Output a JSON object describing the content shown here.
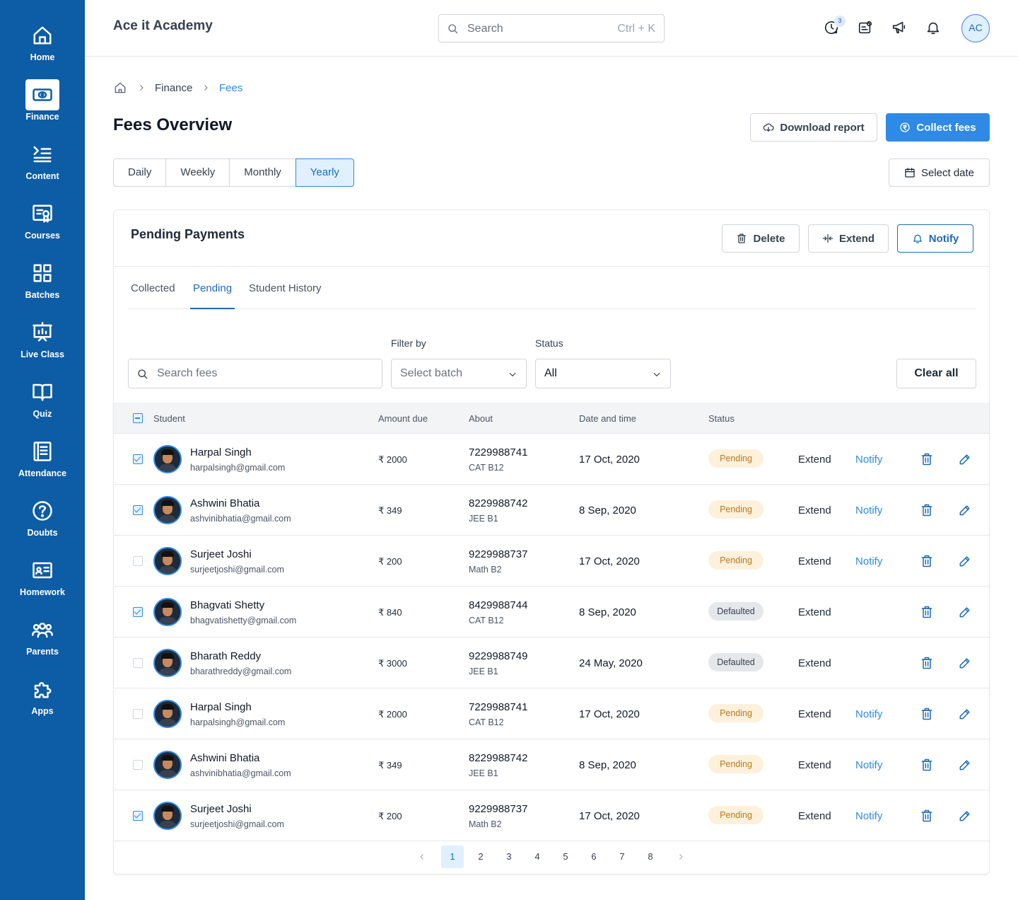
{
  "app": {
    "title": "Ace it Academy"
  },
  "header": {
    "search_placeholder": "Search",
    "search_shortcut": "Ctrl + K",
    "updates_badge": "3",
    "avatar_initials": "AC"
  },
  "sidebar": {
    "items": [
      {
        "label": "Home",
        "icon": "home-icon"
      },
      {
        "label": "Finance",
        "icon": "banknote-icon",
        "active": true
      },
      {
        "label": "Content",
        "icon": "list-icon"
      },
      {
        "label": "Courses",
        "icon": "certificate-icon"
      },
      {
        "label": "Batches",
        "icon": "grid-icon"
      },
      {
        "label": "Live Class",
        "icon": "presentation-icon"
      },
      {
        "label": "Quiz",
        "icon": "book-open-icon"
      },
      {
        "label": "Attendance",
        "icon": "register-icon"
      },
      {
        "label": "Doubts",
        "icon": "question-icon"
      },
      {
        "label": "Homework",
        "icon": "id-card-icon"
      },
      {
        "label": "Parents",
        "icon": "users-icon"
      },
      {
        "label": "Apps",
        "icon": "puzzle-icon"
      }
    ]
  },
  "breadcrumb": {
    "items": [
      "Finance",
      "Fees"
    ]
  },
  "page": {
    "title": "Fees Overview",
    "download_label": "Download report",
    "collect_label": "Collect fees",
    "select_date_label": "Select date",
    "periods": [
      "Daily",
      "Weekly",
      "Monthly",
      "Yearly"
    ],
    "active_period": "Yearly"
  },
  "card": {
    "title": "Pending Payments",
    "delete_label": "Delete",
    "extend_label": "Extend",
    "notify_label": "Notify",
    "tabs": [
      "Collected",
      "Pending",
      "Student History"
    ],
    "active_tab": "Pending",
    "search_placeholder": "Search fees",
    "filter_label": "Filter by",
    "filter_placeholder": "Select batch",
    "status_label": "Status",
    "status_value": "All",
    "clear_label": "Clear all"
  },
  "table": {
    "columns": [
      "Student",
      "Amount due",
      "About",
      "Date and time",
      "Status"
    ],
    "extend_label": "Extend",
    "notify_label": "Notify",
    "rows": [
      {
        "checked": true,
        "name": "Harpal Singh",
        "email": "harpalsingh@gmail.com",
        "amount": "₹ 2000",
        "phone": "7229988741",
        "batch": "CAT B12",
        "date": "17 Oct, 2020",
        "status": "Pending",
        "notify": "Notify"
      },
      {
        "checked": true,
        "name": "Ashwini Bhatia",
        "email": "ashvinibhatia@gmail.com",
        "amount": "₹ 349",
        "phone": "8229988742",
        "batch": "JEE B1",
        "date": "8 Sep, 2020",
        "status": "Pending",
        "notify": "Notify"
      },
      {
        "checked": false,
        "name": "Surjeet Joshi",
        "email": "surjeetjoshi@gmail.com",
        "amount": "₹ 200",
        "phone": "9229988737",
        "batch": "Math B2",
        "date": "17 Oct, 2020",
        "status": "Pending",
        "notify": "Notify"
      },
      {
        "checked": true,
        "name": "Bhagvati Shetty",
        "email": "bhagvatishetty@gmail.com",
        "amount": "₹ 840",
        "phone": "8429988744",
        "batch": "CAT B12",
        "date": "8 Sep, 2020",
        "status": "Defaulted",
        "notify": ""
      },
      {
        "checked": false,
        "name": "Bharath Reddy",
        "email": "bharathreddy@gmail.com",
        "amount": "₹ 3000",
        "phone": "9229988749",
        "batch": "JEE B1",
        "date": "24 May, 2020",
        "status": "Defaulted",
        "notify": ""
      },
      {
        "checked": false,
        "name": "Harpal Singh",
        "email": "harpalsingh@gmail.com",
        "amount": "₹ 2000",
        "phone": "7229988741",
        "batch": "CAT B12",
        "date": "17 Oct, 2020",
        "status": "Pending",
        "notify": "Notify"
      },
      {
        "checked": false,
        "name": "Ashwini Bhatia",
        "email": "ashvinibhatia@gmail.com",
        "amount": "₹ 349",
        "phone": "8229988742",
        "batch": "JEE B1",
        "date": "8 Sep, 2020",
        "status": "Pending",
        "notify": "Notify"
      },
      {
        "checked": true,
        "name": "Surjeet Joshi",
        "email": "surjeetjoshi@gmail.com",
        "amount": "₹ 200",
        "phone": "9229988737",
        "batch": "Math B2",
        "date": "17 Oct, 2020",
        "status": "Pending",
        "notify": "Notify"
      }
    ]
  },
  "pagination": {
    "pages": [
      "1",
      "2",
      "3",
      "4",
      "5",
      "6",
      "7",
      "8"
    ],
    "current": "1"
  },
  "colors": {
    "sidebar": "#0d5ca6",
    "primary": "#2e8ae6",
    "accent_text": "#1e6bb8",
    "pending_bg": "#fdf1dc",
    "defaulted_bg": "#e5e7eb"
  }
}
